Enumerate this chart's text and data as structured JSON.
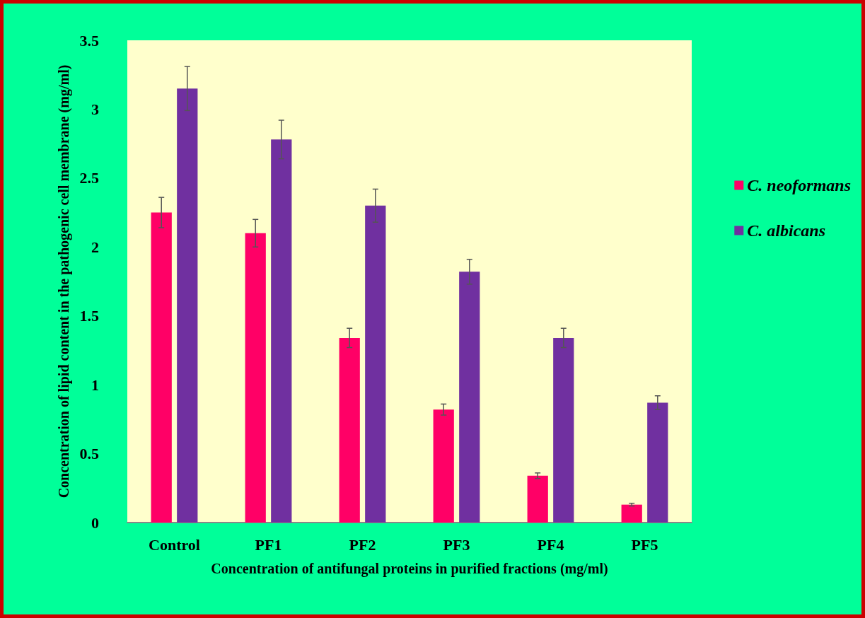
{
  "chart_data": {
    "type": "bar",
    "xlabel": "Concentration of antifungal proteins in purified fractions (mg/ml)",
    "ylabel": "Concentration of lipid content in the pathogenic cell membrane (mg/ml)",
    "categories": [
      "Control",
      "PF1",
      "PF2",
      "PF3",
      "PF4",
      "PF5"
    ],
    "series": [
      {
        "name": "C. neoformans",
        "color": "#ff0066",
        "values": [
          2.25,
          2.1,
          1.34,
          0.82,
          0.34,
          0.13
        ],
        "errors": [
          0.11,
          0.1,
          0.07,
          0.04,
          0.02,
          0.01
        ]
      },
      {
        "name": "C. albicans",
        "color": "#7030a0",
        "values": [
          3.15,
          2.78,
          2.3,
          1.82,
          1.34,
          0.87
        ],
        "errors": [
          0.16,
          0.14,
          0.12,
          0.09,
          0.07,
          0.05
        ]
      }
    ],
    "ylim": [
      0,
      3.5
    ],
    "yticks": [
      0,
      0.5,
      1,
      1.5,
      2,
      2.5,
      3,
      3.5
    ],
    "grid": false,
    "legend": "right"
  }
}
